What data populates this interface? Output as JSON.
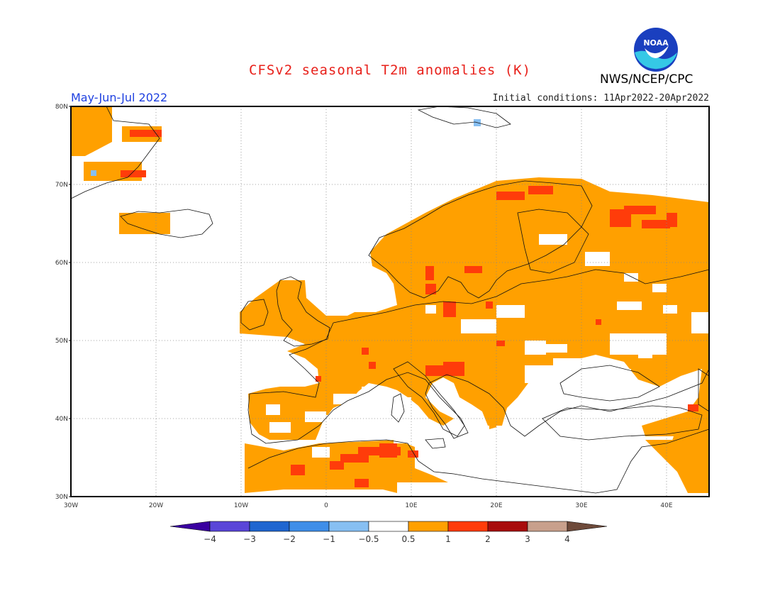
{
  "title": "CFSv2 seasonal T2m anomalies (K)",
  "period": "May-Jun-Jul 2022",
  "initial_conditions": "Initial conditions: 11Apr2022-20Apr2022",
  "agency": "NWS/NCEP/CPC",
  "logo_text": "NOAA",
  "lon_labels": [
    "30W",
    "20W",
    "10W",
    "0",
    "10E",
    "20E",
    "30E",
    "40E"
  ],
  "lat_labels": [
    "80N",
    "70N",
    "60N",
    "50N",
    "40N",
    "30N"
  ],
  "colorbar": {
    "labels": [
      "−4",
      "−3",
      "−2",
      "−1",
      "−0.5",
      "0.5",
      "1",
      "2",
      "3",
      "4"
    ],
    "colors": [
      "#3a00a0",
      "#5a46d8",
      "#1f66d0",
      "#3f8ee8",
      "#87bff2",
      "#ffffff",
      "#ffa000",
      "#ff3c0a",
      "#a80c0c",
      "#c8a08c",
      "#6e4a3a"
    ]
  },
  "legend_colors": {
    "warm_05_1": "#ffa000",
    "warm_1_2": "#ff3c0a",
    "cool_05_1": "#87bff2"
  }
}
